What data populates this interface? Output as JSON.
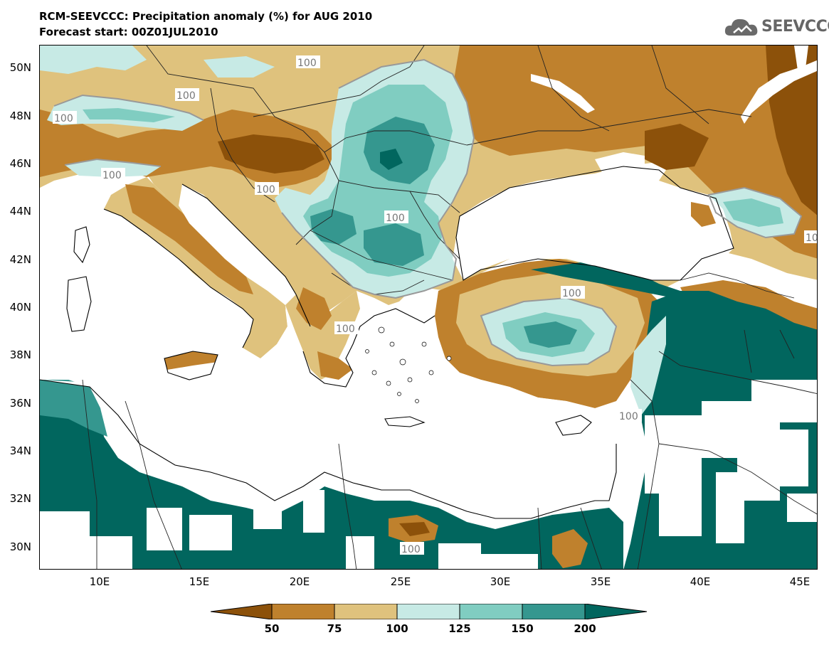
{
  "header": {
    "title_line1": "RCM-SEEVCCC: Precipitation anomaly (%) for AUG 2010",
    "title_line2": "Forecast start: 00Z01JUL2010",
    "logo_text": "SEEVCCC",
    "logo_icon": "cloud-icon"
  },
  "axes": {
    "lat_labels": [
      "50N",
      "48N",
      "46N",
      "44N",
      "42N",
      "40N",
      "38N",
      "36N",
      "34N",
      "32N",
      "30N"
    ],
    "lon_labels": [
      "10E",
      "15E",
      "20E",
      "25E",
      "30E",
      "35E",
      "40E",
      "45E"
    ]
  },
  "contour_labels": [
    "100",
    "100",
    "100",
    "100",
    "100",
    "100",
    "100",
    "100",
    "100",
    "100",
    "100"
  ],
  "legend": {
    "tick_labels": [
      "50",
      "75",
      "100",
      "125",
      "150",
      "200"
    ],
    "colors": [
      "#8c510a",
      "#bf812d",
      "#dfc27d",
      "#c7eae5",
      "#80cdc1",
      "#35978f",
      "#01665e"
    ]
  },
  "colors": {
    "below_50": "#8c510a",
    "range_50_75": "#bf812d",
    "range_75_100": "#dfc27d",
    "range_100_125": "#c7eae5",
    "range_125_150": "#80cdc1",
    "range_150_200": "#35978f",
    "above_200": "#01665e"
  }
}
